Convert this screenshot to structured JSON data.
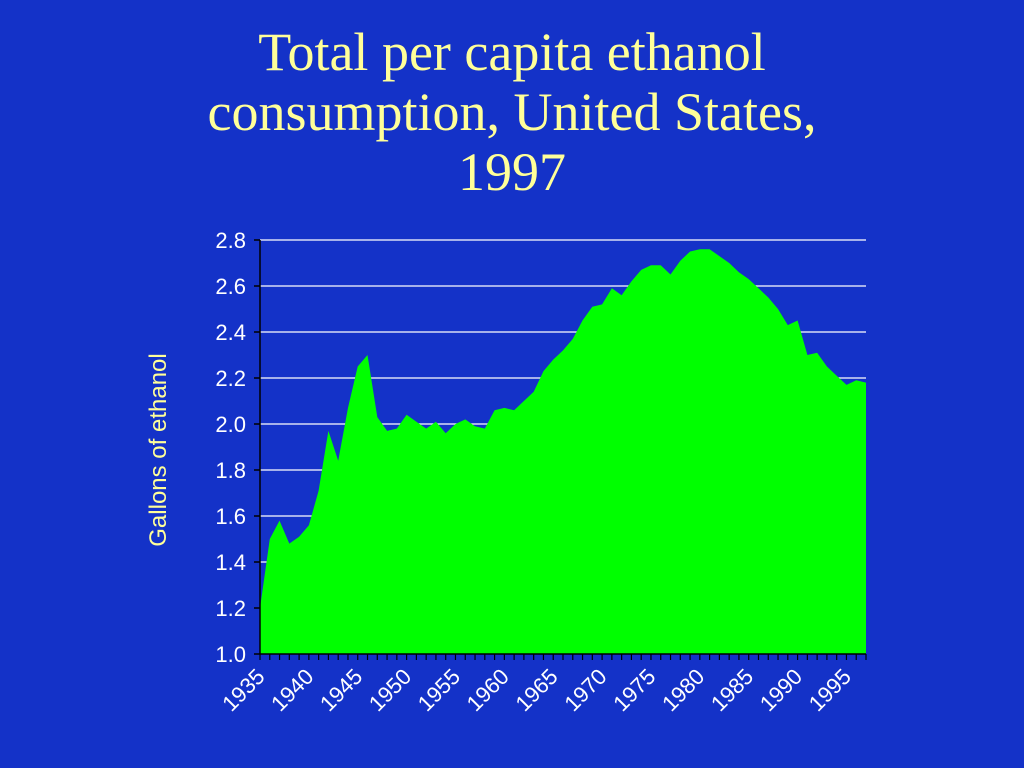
{
  "colors": {
    "background": "#1432c8",
    "title": "#ffff99",
    "area_fill": "#00ff00",
    "axis_line": "#000000",
    "grid_line": "#ffffff",
    "tick_label": "#ffffff",
    "axis_title": "#ffff99"
  },
  "chart_data": {
    "type": "area",
    "title_lines": [
      "Total per capita ethanol",
      "consumption, United States,",
      "1997"
    ],
    "xlabel": "",
    "ylabel": "Gallons of ethanol",
    "xlim": [
      1935,
      1997
    ],
    "ylim": [
      1.0,
      2.8
    ],
    "grid": true,
    "legend": "none",
    "x_ticks": [
      1935,
      1940,
      1945,
      1950,
      1955,
      1960,
      1965,
      1970,
      1975,
      1980,
      1985,
      1990,
      1995
    ],
    "y_ticks": [
      1.0,
      1.2,
      1.4,
      1.6,
      1.8,
      2.0,
      2.2,
      2.4,
      2.6,
      2.8
    ],
    "y_tick_labels": [
      "1.0",
      "1.2",
      "1.4",
      "1.6",
      "1.8",
      "2.0",
      "2.2",
      "2.4",
      "2.6",
      "2.8"
    ],
    "x": [
      1935,
      1936,
      1937,
      1938,
      1939,
      1940,
      1941,
      1942,
      1943,
      1944,
      1945,
      1946,
      1947,
      1948,
      1949,
      1950,
      1951,
      1952,
      1953,
      1954,
      1955,
      1956,
      1957,
      1958,
      1959,
      1960,
      1961,
      1962,
      1963,
      1964,
      1965,
      1966,
      1967,
      1968,
      1969,
      1970,
      1971,
      1972,
      1973,
      1974,
      1975,
      1976,
      1977,
      1978,
      1979,
      1980,
      1981,
      1982,
      1983,
      1984,
      1985,
      1986,
      1987,
      1988,
      1989,
      1990,
      1991,
      1992,
      1993,
      1994,
      1995,
      1996,
      1997
    ],
    "values": [
      1.2,
      1.5,
      1.58,
      1.48,
      1.51,
      1.56,
      1.71,
      1.97,
      1.84,
      2.07,
      2.25,
      2.3,
      2.03,
      1.97,
      1.98,
      2.04,
      2.01,
      1.98,
      2.01,
      1.96,
      2.0,
      2.02,
      1.99,
      1.98,
      2.06,
      2.07,
      2.06,
      2.1,
      2.14,
      2.23,
      2.28,
      2.32,
      2.37,
      2.45,
      2.51,
      2.52,
      2.59,
      2.56,
      2.62,
      2.67,
      2.69,
      2.69,
      2.65,
      2.71,
      2.75,
      2.76,
      2.76,
      2.73,
      2.7,
      2.66,
      2.63,
      2.59,
      2.55,
      2.5,
      2.43,
      2.45,
      2.3,
      2.31,
      2.25,
      2.21,
      2.17,
      2.19,
      2.18
    ]
  }
}
